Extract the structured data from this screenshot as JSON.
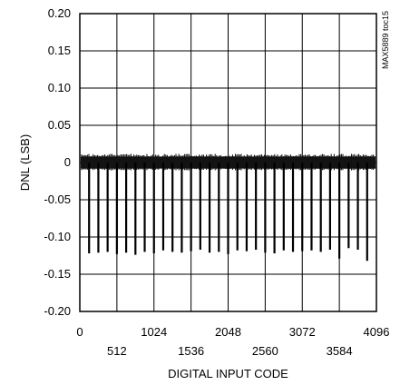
{
  "chart_data": {
    "type": "line",
    "title": "",
    "xlabel": "DIGITAL INPUT CODE",
    "ylabel": "DNL (LSB)",
    "side_label": "MAX5889 toc15",
    "xlim": [
      0,
      4096
    ],
    "ylim": [
      -0.2,
      0.2
    ],
    "grid": true,
    "xticks_top_row": [
      "0",
      "1024",
      "2048",
      "3072",
      "4096"
    ],
    "xticks_bottom_row": [
      "512",
      "1536",
      "2560",
      "3584"
    ],
    "xtick_values_top_row": [
      0,
      1024,
      2048,
      3072,
      4096
    ],
    "xtick_values_bottom_row": [
      512,
      1536,
      2560,
      3584
    ],
    "yticks": [
      "0.20",
      "0.15",
      "0.10",
      "0.05",
      "0",
      "-0.05",
      "-0.10",
      "-0.15",
      "-0.20"
    ],
    "ytick_values": [
      0.2,
      0.15,
      0.1,
      0.05,
      0,
      -0.05,
      -0.1,
      -0.15,
      -0.2
    ],
    "noise_band": [
      -0.008,
      0.008
    ],
    "series": [
      {
        "x": [
          128,
          256,
          384,
          512,
          640,
          768,
          896,
          1024,
          1152,
          1280,
          1408,
          1536,
          1664,
          1792,
          1920,
          2048,
          2176,
          2304,
          2432,
          2560,
          2688,
          2816,
          2944,
          3072,
          3200,
          3328,
          3456,
          3584,
          3712,
          3840,
          3968
        ],
        "y": [
          -0.122,
          -0.121,
          -0.12,
          -0.123,
          -0.121,
          -0.124,
          -0.12,
          -0.122,
          -0.118,
          -0.12,
          -0.121,
          -0.119,
          -0.117,
          -0.121,
          -0.12,
          -0.123,
          -0.118,
          -0.119,
          -0.117,
          -0.121,
          -0.122,
          -0.118,
          -0.12,
          -0.119,
          -0.118,
          -0.12,
          -0.117,
          -0.129,
          -0.115,
          -0.117,
          -0.132
        ]
      }
    ]
  }
}
